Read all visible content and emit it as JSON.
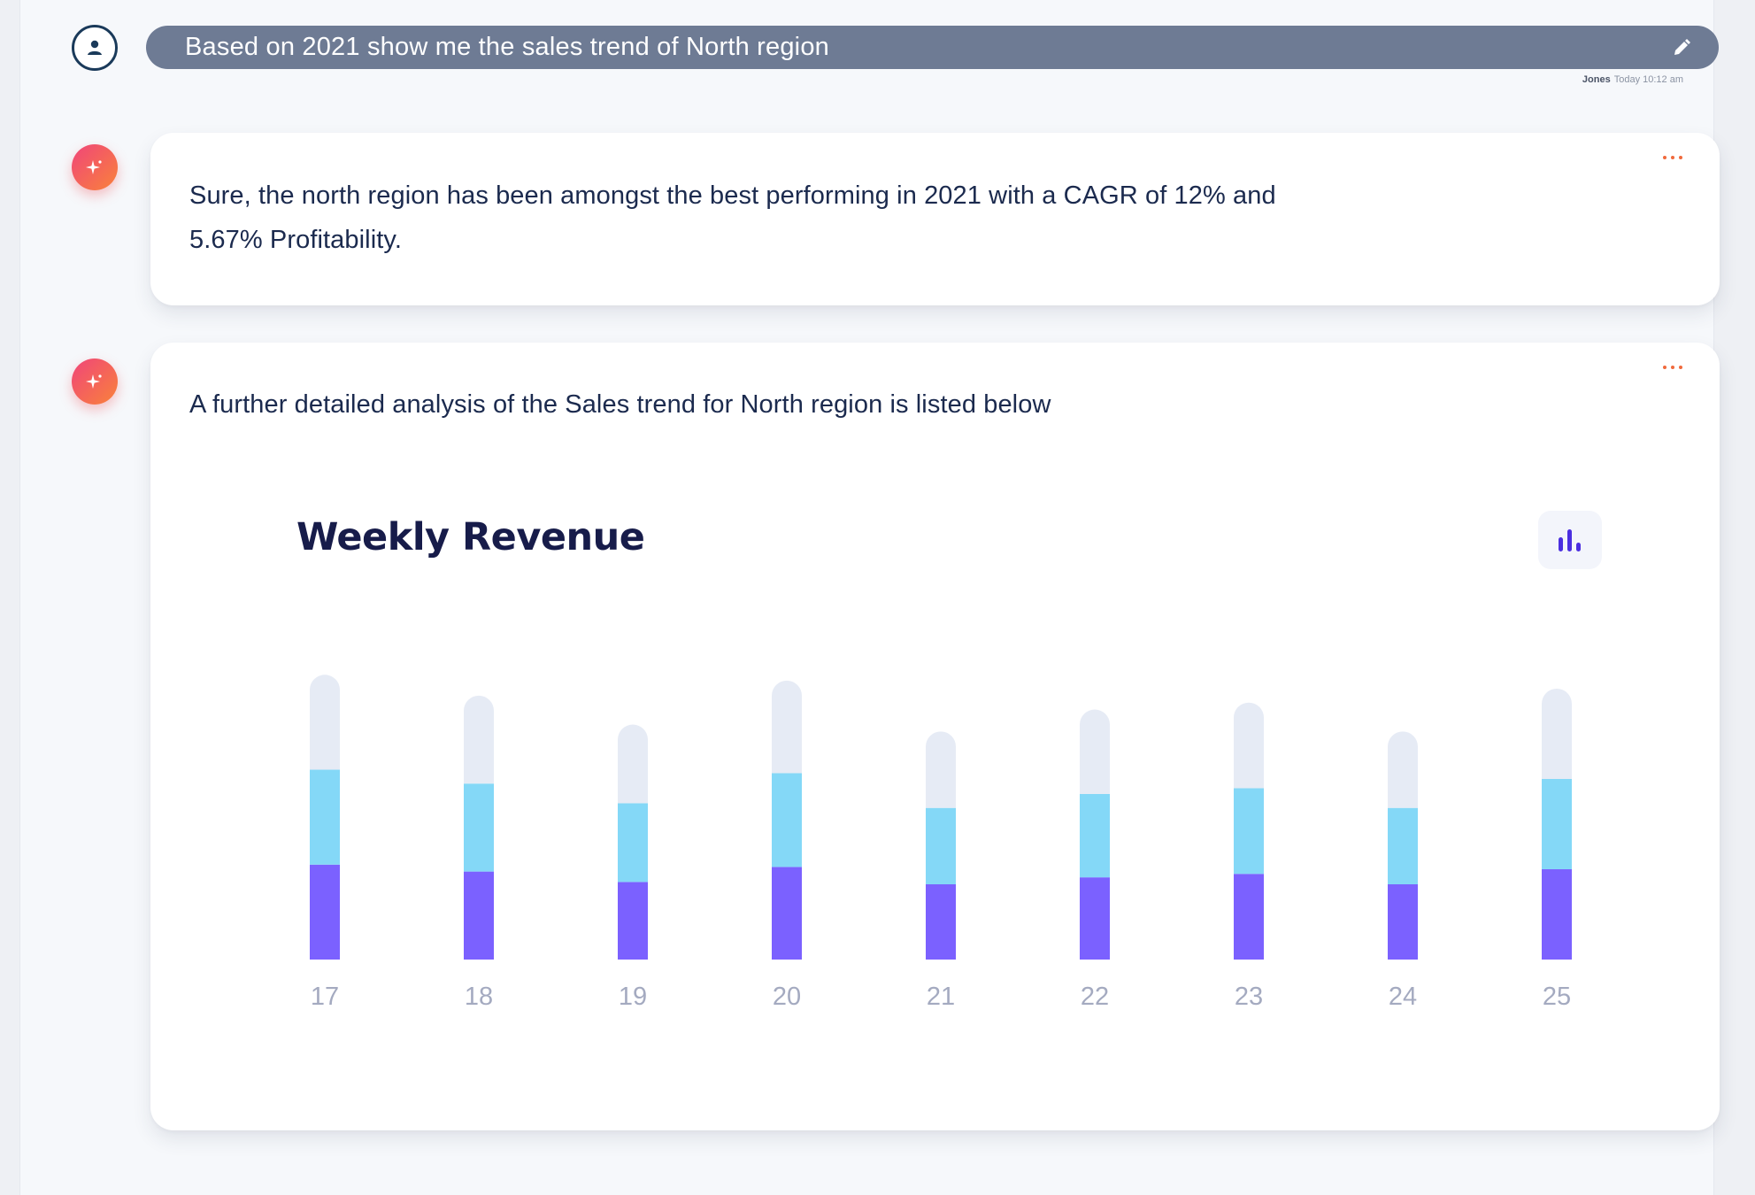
{
  "prompt": {
    "text": "Based on 2021 show me the sales trend of North region",
    "author": "Jones",
    "time": "Today 10:12 am"
  },
  "messages": [
    {
      "text_line1": "Sure, the north region has been amongst the best performing in 2021 with a CAGR of 12% and",
      "text_line2": "5.67% Profitability."
    },
    {
      "text": "A further detailed analysis of the Sales trend for North region is listed below"
    }
  ],
  "icons": {
    "user": "user-icon",
    "edit": "pencil-icon",
    "bot": "sparkle-icon",
    "more": "more-dots-icon",
    "chart_toggle": "bar-chart-icon"
  },
  "colors": {
    "bar_bottom": "#7b61ff",
    "bar_middle": "#84d8f7",
    "bar_top": "#e6ebf5",
    "dots": "#f06a3d"
  },
  "chart_data": {
    "type": "bar",
    "stacked": true,
    "title": "Weekly Revenue",
    "categories": [
      "17",
      "18",
      "19",
      "20",
      "21",
      "22",
      "23",
      "24",
      "25"
    ],
    "series": [
      {
        "values": [
          82,
          76,
          67,
          80,
          65,
          71,
          74,
          65,
          78
        ]
      },
      {
        "values": [
          82,
          76,
          68,
          81,
          66,
          72,
          74,
          66,
          78
        ]
      },
      {
        "values": [
          82,
          76,
          68,
          80,
          66,
          73,
          74,
          66,
          78
        ]
      }
    ],
    "ylim": [
      0,
      260
    ],
    "grid": false,
    "legend": "none"
  }
}
